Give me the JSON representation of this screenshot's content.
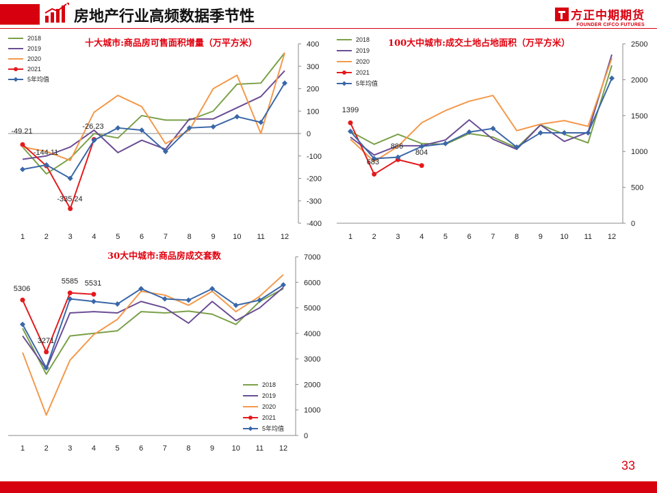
{
  "header": {
    "title": "房地产行业高频数据季节性",
    "brand_cn": "方正中期期货",
    "brand_en": "FOUNDER CIFCO FUTURES",
    "accent": "#d7000f"
  },
  "page_number": "33",
  "chart_data": [
    {
      "type": "line",
      "title": "十大城市:商品房可售面积增量（万平方米）",
      "categories": [
        "1",
        "2",
        "3",
        "4",
        "5",
        "6",
        "7",
        "8",
        "9",
        "10",
        "11",
        "12"
      ],
      "ylim": [
        -400,
        400
      ],
      "yticks": [
        "400",
        "300",
        "200",
        "100",
        "0",
        "-100",
        "-200",
        "-300",
        "-400"
      ],
      "axis_side": "right",
      "legend_position": "top-left",
      "series": [
        {
          "name": "2018",
          "color": "#7aa047",
          "values": [
            -60,
            -180,
            -110,
            0,
            -20,
            80,
            60,
            60,
            100,
            220,
            225,
            360
          ]
        },
        {
          "name": "2019",
          "color": "#6a4c93",
          "values": [
            -115,
            -100,
            -60,
            15,
            -85,
            -30,
            -70,
            65,
            65,
            115,
            165,
            280
          ]
        },
        {
          "name": "2020",
          "color": "#f3984a",
          "values": [
            -60,
            -80,
            -120,
            95,
            170,
            120,
            -45,
            15,
            200,
            260,
            0,
            360
          ]
        },
        {
          "name": "2021",
          "color": "#e41a1c",
          "marker": "circle",
          "values": [
            -49.21,
            -144.11,
            -335.24,
            -26.23,
            null,
            null,
            null,
            null,
            null,
            null,
            null,
            null
          ]
        },
        {
          "name": "5年均值",
          "color": "#3a67a8",
          "marker": "diamond",
          "values": [
            -160,
            -140,
            -200,
            -30,
            25,
            15,
            -80,
            25,
            30,
            75,
            50,
            225
          ]
        }
      ],
      "labels": [
        "-49.21",
        "-144.11",
        "-335.24",
        "-26.23"
      ]
    },
    {
      "type": "line",
      "title": "100大中城市:成交土地占地面积（万平方米）",
      "categories": [
        "1",
        "2",
        "3",
        "4",
        "5",
        "6",
        "7",
        "8",
        "9",
        "10",
        "11",
        "12"
      ],
      "ylim": [
        0,
        2500
      ],
      "yticks": [
        "2500",
        "2000",
        "1500",
        "1000",
        "500",
        "0"
      ],
      "axis_side": "right",
      "legend_position": "top-left",
      "series": [
        {
          "name": "2018",
          "color": "#7aa047",
          "values": [
            1280,
            1100,
            1240,
            1110,
            1100,
            1250,
            1200,
            1050,
            1370,
            1240,
            1120,
            2200
          ]
        },
        {
          "name": "2019",
          "color": "#6a4c93",
          "values": [
            1200,
            950,
            1080,
            1080,
            1160,
            1440,
            1170,
            1030,
            1370,
            1140,
            1270,
            2350
          ]
        },
        {
          "name": "2020",
          "color": "#f3984a",
          "values": [
            1170,
            860,
            1070,
            1400,
            1570,
            1700,
            1780,
            1290,
            1380,
            1430,
            1350,
            2300
          ]
        },
        {
          "name": "2021",
          "color": "#e41a1c",
          "marker": "circle",
          "values": [
            1399,
            683,
            886,
            804,
            null,
            null,
            null,
            null,
            null,
            null,
            null,
            null
          ]
        },
        {
          "name": "5年均值",
          "color": "#3a67a8",
          "marker": "diamond",
          "values": [
            1280,
            900,
            920,
            1070,
            1110,
            1270,
            1320,
            1060,
            1260,
            1260,
            1260,
            2020
          ]
        }
      ],
      "labels": [
        "1399",
        "683",
        "886",
        "804"
      ]
    },
    {
      "type": "line",
      "title": "30大中城市:商品房成交套数",
      "categories": [
        "1",
        "2",
        "3",
        "4",
        "5",
        "6",
        "7",
        "8",
        "9",
        "10",
        "11",
        "12"
      ],
      "ylim": [
        0,
        7000
      ],
      "yticks": [
        "7000",
        "6000",
        "5000",
        "4000",
        "3000",
        "2000",
        "1000",
        "0"
      ],
      "axis_side": "right",
      "legend_position": "bottom-right",
      "series": [
        {
          "name": "2018",
          "color": "#7aa047",
          "values": [
            4200,
            2400,
            3900,
            4000,
            4100,
            4850,
            4800,
            4870,
            4750,
            4350,
            5250,
            5750
          ]
        },
        {
          "name": "2019",
          "color": "#6a4c93",
          "values": [
            3900,
            2600,
            4800,
            4850,
            4800,
            5250,
            5000,
            4400,
            5250,
            4500,
            5000,
            5800
          ]
        },
        {
          "name": "2020",
          "color": "#f3984a",
          "values": [
            3250,
            800,
            2950,
            3950,
            4550,
            5650,
            5500,
            5100,
            5650,
            4850,
            5450,
            6300
          ]
        },
        {
          "name": "2021",
          "color": "#e41a1c",
          "marker": "circle",
          "values": [
            5306,
            3271,
            5585,
            5531,
            null,
            null,
            null,
            null,
            null,
            null,
            null,
            null
          ]
        },
        {
          "name": "5年均值",
          "color": "#3a67a8",
          "marker": "diamond",
          "values": [
            4350,
            2650,
            5350,
            5250,
            5150,
            5750,
            5350,
            5300,
            5750,
            5100,
            5300,
            5900
          ]
        }
      ],
      "labels": [
        "5306",
        "3271",
        "5585",
        "5531"
      ]
    }
  ]
}
